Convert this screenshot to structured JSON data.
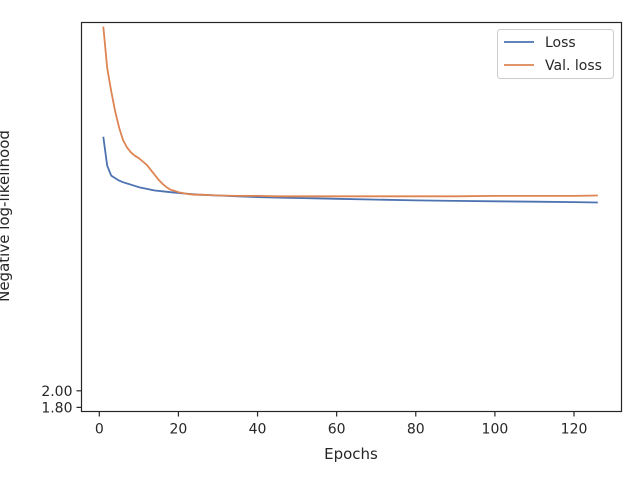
{
  "chart_data": {
    "type": "line",
    "xlabel": "Epochs",
    "ylabel": "Negative log-likelihood",
    "xlim": [
      -4.5,
      132
    ],
    "ylim": [
      1.75,
      6.45
    ],
    "xticks": [
      0,
      20,
      40,
      60,
      80,
      100,
      120
    ],
    "yticks": [
      1.8,
      2.0
    ],
    "legend_position": "top-right",
    "grid": false,
    "series": [
      {
        "name": "Loss",
        "color": "#4c72b0",
        "x": [
          1,
          2,
          3,
          4,
          5,
          6,
          8,
          10,
          12,
          14,
          16,
          18,
          20,
          25,
          30,
          35,
          40,
          45,
          50,
          60,
          70,
          80,
          90,
          100,
          110,
          120,
          126
        ],
        "y": [
          5.07,
          4.72,
          4.6,
          4.57,
          4.54,
          4.52,
          4.49,
          4.46,
          4.44,
          4.42,
          4.41,
          4.4,
          4.39,
          4.37,
          4.36,
          4.35,
          4.34,
          4.335,
          4.33,
          4.32,
          4.31,
          4.3,
          4.295,
          4.29,
          4.285,
          4.28,
          4.275
        ]
      },
      {
        "name": "Val. loss",
        "color": "#dd8452",
        "x": [
          1,
          2,
          3,
          4,
          5,
          6,
          7,
          8,
          9,
          10,
          11,
          12,
          13,
          14,
          15,
          16,
          17,
          18,
          19,
          20,
          21,
          22,
          24,
          26,
          28,
          30,
          35,
          40,
          45,
          50,
          55,
          60,
          70,
          80,
          90,
          100,
          110,
          120,
          126
        ],
        "y": [
          6.4,
          5.9,
          5.62,
          5.38,
          5.18,
          5.03,
          4.94,
          4.88,
          4.84,
          4.81,
          4.77,
          4.73,
          4.67,
          4.61,
          4.55,
          4.5,
          4.46,
          4.43,
          4.415,
          4.4,
          4.39,
          4.38,
          4.37,
          4.37,
          4.365,
          4.36,
          4.355,
          4.355,
          4.35,
          4.35,
          4.35,
          4.35,
          4.35,
          4.35,
          4.35,
          4.355,
          4.355,
          4.355,
          4.36
        ]
      }
    ]
  }
}
